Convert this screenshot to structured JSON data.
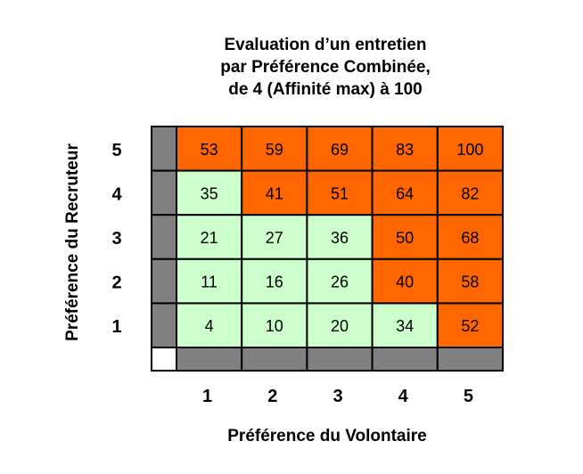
{
  "chart_data": {
    "type": "heatmap",
    "title_lines": [
      "Evaluation d’un entretien",
      "par Préférence Combinée,",
      "de  4 (Affinité max) à 100"
    ],
    "xlabel": "Préférence du  Volontaire",
    "ylabel": "Préférence du  Recruteur",
    "x_categories": [
      "1",
      "2",
      "3",
      "4",
      "5"
    ],
    "y_categories": [
      "5",
      "4",
      "3",
      "2",
      "1"
    ],
    "values": [
      [
        53,
        59,
        69,
        83,
        100
      ],
      [
        35,
        41,
        51,
        64,
        82
      ],
      [
        21,
        27,
        36,
        50,
        68
      ],
      [
        11,
        16,
        26,
        40,
        58
      ],
      [
        4,
        10,
        20,
        34,
        52
      ]
    ],
    "cell_colors": [
      [
        "orange",
        "orange",
        "orange",
        "orange",
        "orange"
      ],
      [
        "green",
        "orange",
        "orange",
        "orange",
        "orange"
      ],
      [
        "green",
        "green",
        "green",
        "orange",
        "orange"
      ],
      [
        "green",
        "green",
        "green",
        "orange",
        "orange"
      ],
      [
        "green",
        "green",
        "green",
        "green",
        "orange"
      ]
    ],
    "colors": {
      "orange": "#ff6600",
      "green": "#ccffcc",
      "header": "#808080",
      "corner": "#ffffff",
      "border": "#000000"
    }
  }
}
